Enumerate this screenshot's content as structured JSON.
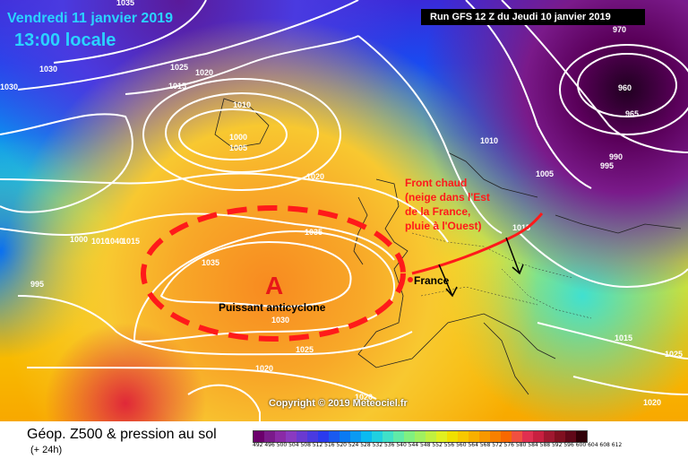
{
  "header": {
    "date": "Vendredi 11 janvier 2019",
    "time": "13:00 locale",
    "run": "Run GFS 12 Z du Jeudi 10 janvier 2019"
  },
  "annotations": {
    "front_line1": "Front chaud",
    "front_line2": "(neige dans l'Est",
    "front_line3": "de la France,",
    "front_line4": "pluie à l'Ouest)",
    "anticyclone": "Puissant anticyclone",
    "high_letter": "A",
    "france": "France"
  },
  "isobars": {
    "l1030a": "1030",
    "l1025a": "1025",
    "l1020a": "1020",
    "l1015a": "1015",
    "l1010a": "1010",
    "l1000a": "1000",
    "l1005a": "1005",
    "l1030b": "1030",
    "l1020b": "1020",
    "l1035a": "1035",
    "l1035b": "1035",
    "l1030c": "1030",
    "l1025b": "1025",
    "l1020c": "1020",
    "l1000b": "1000",
    "l1010b": "1010",
    "l1040": "1040",
    "l1015b": "1015",
    "l995a": "995",
    "l960": "960",
    "l965": "965",
    "l990": "990",
    "l995b": "995",
    "l1005b": "1005",
    "l1010c": "1010",
    "l1015c": "1015",
    "l1015d": "1015",
    "l1025c": "1025",
    "l1020d": "1020",
    "l970": "970",
    "l1020e": "1020",
    "l1035c": "1035"
  },
  "copyright": "Copyright © 2019 Meteociel.fr",
  "footer": {
    "title": "Géop. Z500 & pression au sol",
    "subtitle": "(+ 24h)"
  },
  "scale": {
    "labels": "492 496 500 504 508 512 516 520 524 528 532 536 540 544 548 552 556 560 564 568 572 576 580 584 588 592 596 600 604 608 612",
    "colors": [
      "#6b006b",
      "#7a1a8a",
      "#8a2aa6",
      "#8a3ac0",
      "#6a3ad0",
      "#4a3ae0",
      "#2a3aee",
      "#1a5af0",
      "#0a7af2",
      "#0a9af2",
      "#0abaf0",
      "#20d0e0",
      "#40e0c8",
      "#60eaa8",
      "#80f080",
      "#a0f060",
      "#c0f040",
      "#e0f020",
      "#f0e000",
      "#f8c800",
      "#f8b000",
      "#f89800",
      "#f88000",
      "#f86800",
      "#f05040",
      "#e03050",
      "#c82040",
      "#a01830",
      "#801020",
      "#600818",
      "#300008"
    ]
  },
  "colors": {
    "front": "#ff1a1a",
    "high_text": "#e81818"
  }
}
